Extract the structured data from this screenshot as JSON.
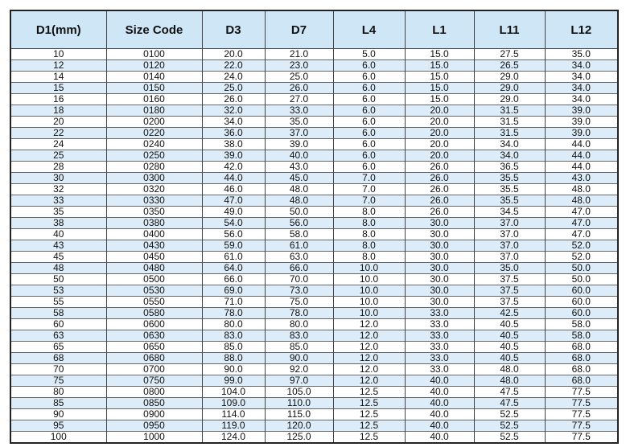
{
  "table": {
    "header": [
      "D1(mm)",
      "Size Code",
      "D3",
      "D7",
      "L4",
      "L1",
      "L11",
      "L12"
    ],
    "rows": [
      [
        "10",
        "0100",
        "20.0",
        "21.0",
        "5.0",
        "15.0",
        "27.5",
        "35.0"
      ],
      [
        "12",
        "0120",
        "22.0",
        "23.0",
        "6.0",
        "15.0",
        "26.5",
        "34.0"
      ],
      [
        "14",
        "0140",
        "24.0",
        "25.0",
        "6.0",
        "15.0",
        "29.0",
        "34.0"
      ],
      [
        "15",
        "0150",
        "25.0",
        "26.0",
        "6.0",
        "15.0",
        "29.0",
        "34.0"
      ],
      [
        "16",
        "0160",
        "26.0",
        "27.0",
        "6.0",
        "15.0",
        "29.0",
        "34.0"
      ],
      [
        "18",
        "0180",
        "32.0",
        "33.0",
        "6.0",
        "20.0",
        "31.5",
        "39.0"
      ],
      [
        "20",
        "0200",
        "34.0",
        "35.0",
        "6.0",
        "20.0",
        "31.5",
        "39.0"
      ],
      [
        "22",
        "0220",
        "36.0",
        "37.0",
        "6.0",
        "20.0",
        "31.5",
        "39.0"
      ],
      [
        "24",
        "0240",
        "38.0",
        "39.0",
        "6.0",
        "20.0",
        "34.0",
        "44.0"
      ],
      [
        "25",
        "0250",
        "39.0",
        "40.0",
        "6.0",
        "20.0",
        "34.0",
        "44.0"
      ],
      [
        "28",
        "0280",
        "42.0",
        "43.0",
        "6.0",
        "26.0",
        "36.5",
        "44.0"
      ],
      [
        "30",
        "0300",
        "44.0",
        "45.0",
        "7.0",
        "26.0",
        "35.5",
        "43.0"
      ],
      [
        "32",
        "0320",
        "46.0",
        "48.0",
        "7.0",
        "26.0",
        "35.5",
        "48.0"
      ],
      [
        "33",
        "0330",
        "47.0",
        "48.0",
        "7.0",
        "26.0",
        "35.5",
        "48.0"
      ],
      [
        "35",
        "0350",
        "49.0",
        "50.0",
        "8.0",
        "26.0",
        "34.5",
        "47.0"
      ],
      [
        "38",
        "0380",
        "54.0",
        "56.0",
        "8.0",
        "30.0",
        "37.0",
        "47.0"
      ],
      [
        "40",
        "0400",
        "56.0",
        "58.0",
        "8.0",
        "30.0",
        "37.0",
        "47.0"
      ],
      [
        "43",
        "0430",
        "59.0",
        "61.0",
        "8.0",
        "30.0",
        "37.0",
        "52.0"
      ],
      [
        "45",
        "0450",
        "61.0",
        "63.0",
        "8.0",
        "30.0",
        "37.0",
        "52.0"
      ],
      [
        "48",
        "0480",
        "64.0",
        "66.0",
        "10.0",
        "30.0",
        "35.0",
        "50.0"
      ],
      [
        "50",
        "0500",
        "66.0",
        "70.0",
        "10.0",
        "30.0",
        "37.5",
        "50.0"
      ],
      [
        "53",
        "0530",
        "69.0",
        "73.0",
        "10.0",
        "30.0",
        "37.5",
        "60.0"
      ],
      [
        "55",
        "0550",
        "71.0",
        "75.0",
        "10.0",
        "30.0",
        "37.5",
        "60.0"
      ],
      [
        "58",
        "0580",
        "78.0",
        "78.0",
        "10.0",
        "33.0",
        "42.5",
        "60.0"
      ],
      [
        "60",
        "0600",
        "80.0",
        "80.0",
        "12.0",
        "33.0",
        "40.5",
        "58.0"
      ],
      [
        "63",
        "0630",
        "83.0",
        "83.0",
        "12.0",
        "33.0",
        "40.5",
        "58.0"
      ],
      [
        "65",
        "0650",
        "85.0",
        "85.0",
        "12.0",
        "33.0",
        "40.5",
        "68.0"
      ],
      [
        "68",
        "0680",
        "88.0",
        "90.0",
        "12.0",
        "33.0",
        "40.5",
        "68.0"
      ],
      [
        "70",
        "0700",
        "90.0",
        "92.0",
        "12.0",
        "33.0",
        "48.0",
        "68.0"
      ],
      [
        "75",
        "0750",
        "99.0",
        "97.0",
        "12.0",
        "40.0",
        "48.0",
        "68.0"
      ],
      [
        "80",
        "0800",
        "104.0",
        "105.0",
        "12.5",
        "40.0",
        "47.5",
        "77.5"
      ],
      [
        "85",
        "0850",
        "109.0",
        "110.0",
        "12.5",
        "40.0",
        "47.5",
        "77.5"
      ],
      [
        "90",
        "0900",
        "114.0",
        "115.0",
        "12.5",
        "40.0",
        "52.5",
        "77.5"
      ],
      [
        "95",
        "0950",
        "119.0",
        "120.0",
        "12.5",
        "40.0",
        "52.5",
        "77.5"
      ],
      [
        "100",
        "1000",
        "124.0",
        "125.0",
        "12.5",
        "40.0",
        "52.5",
        "77.5"
      ]
    ]
  }
}
